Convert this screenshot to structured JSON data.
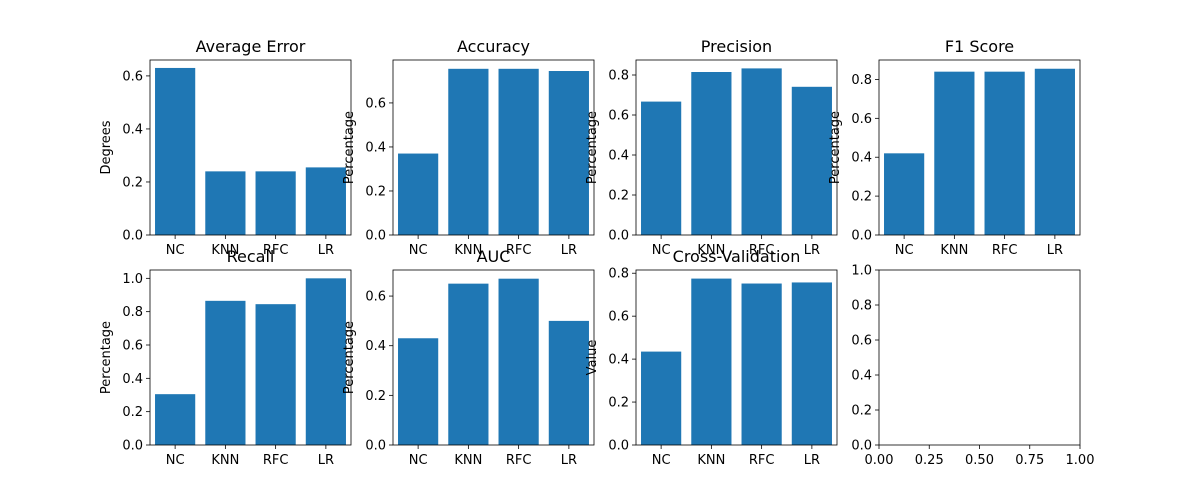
{
  "figure": {
    "bar_color": "#1f77b4",
    "axes_color": "#000000",
    "background": "#ffffff"
  },
  "chart_data": [
    {
      "type": "bar",
      "title": "Average Error",
      "ylabel": "Degrees",
      "categories": [
        "NC",
        "KNN",
        "RFC",
        "LR"
      ],
      "values": [
        0.63,
        0.24,
        0.24,
        0.255
      ],
      "ylim": [
        0,
        0.66
      ],
      "yticks": [
        "0.0",
        "0.2",
        "0.4",
        "0.6"
      ]
    },
    {
      "type": "bar",
      "title": "Accuracy",
      "ylabel": "Percentage",
      "categories": [
        "NC",
        "KNN",
        "RFC",
        "LR"
      ],
      "values": [
        0.37,
        0.755,
        0.755,
        0.745
      ],
      "ylim": [
        0,
        0.795
      ],
      "yticks": [
        "0.0",
        "0.2",
        "0.4",
        "0.6"
      ]
    },
    {
      "type": "bar",
      "title": "Precision",
      "ylabel": "Percentage",
      "categories": [
        "NC",
        "KNN",
        "RFC",
        "LR"
      ],
      "values": [
        0.667,
        0.815,
        0.833,
        0.741
      ],
      "ylim": [
        0,
        0.875
      ],
      "yticks": [
        "0.0",
        "0.2",
        "0.4",
        "0.6",
        "0.8"
      ]
    },
    {
      "type": "bar",
      "title": "F1 Score",
      "ylabel": "Percentage",
      "categories": [
        "NC",
        "KNN",
        "RFC",
        "LR"
      ],
      "values": [
        0.42,
        0.84,
        0.84,
        0.855
      ],
      "ylim": [
        0,
        0.9
      ],
      "yticks": [
        "0.0",
        "0.2",
        "0.4",
        "0.6",
        "0.8"
      ]
    },
    {
      "type": "bar",
      "title": "Recall",
      "ylabel": "Percentage",
      "categories": [
        "NC",
        "KNN",
        "RFC",
        "LR"
      ],
      "values": [
        0.305,
        0.865,
        0.845,
        1.0
      ],
      "ylim": [
        0,
        1.05
      ],
      "yticks": [
        "0.0",
        "0.2",
        "0.4",
        "0.6",
        "0.8",
        "1.0"
      ]
    },
    {
      "type": "bar",
      "title": "AUC",
      "ylabel": "Percentage",
      "categories": [
        "NC",
        "KNN",
        "RFC",
        "LR"
      ],
      "values": [
        0.43,
        0.65,
        0.67,
        0.5
      ],
      "ylim": [
        0,
        0.705
      ],
      "yticks": [
        "0.0",
        "0.2",
        "0.4",
        "0.6"
      ]
    },
    {
      "type": "bar",
      "title": "Cross-Validation",
      "ylabel": "Value",
      "categories": [
        "NC",
        "KNN",
        "RFC",
        "LR"
      ],
      "values": [
        0.435,
        0.775,
        0.752,
        0.757
      ],
      "ylim": [
        0,
        0.815
      ],
      "yticks": [
        "0.0",
        "0.2",
        "0.4",
        "0.6",
        "0.8"
      ]
    },
    {
      "type": "bar",
      "title": "",
      "ylabel": "",
      "categories": [],
      "values": [],
      "ylim": [
        0,
        1
      ],
      "xlim": [
        0,
        1
      ],
      "yticks": [
        "0.0",
        "0.2",
        "0.4",
        "0.6",
        "0.8",
        "1.0"
      ],
      "xticks": [
        "0.00",
        "0.25",
        "0.50",
        "0.75",
        "1.00"
      ]
    }
  ]
}
